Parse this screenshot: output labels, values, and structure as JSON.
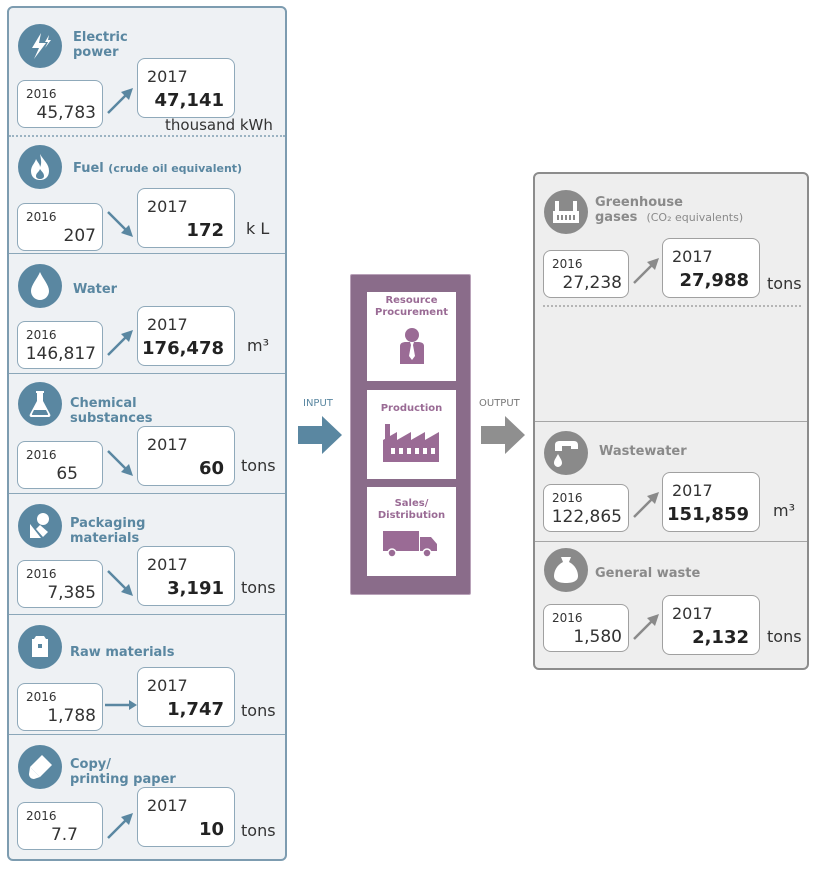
{
  "input": {
    "label": "INPUT",
    "items": [
      {
        "title": "Electric",
        "title2": "power",
        "y2016": "2016",
        "v2016": "45,783",
        "y2017": "2017",
        "v2017": "47,141",
        "unit": "thousand kWh",
        "icon": "lightning-icon"
      },
      {
        "title": "Fuel",
        "subtitle": "(crude oil equivalent)",
        "y2016": "2016",
        "v2016": "207",
        "y2017": "2017",
        "v2017": "172",
        "unit": "k L",
        "icon": "flame-icon"
      },
      {
        "title": "Water",
        "y2016": "2016",
        "v2016": "146,817",
        "y2017": "2017",
        "v2017": "176,478",
        "unit": "m³",
        "icon": "water-drop-icon"
      },
      {
        "title": "Chemical",
        "title2": "substances",
        "y2016": "2016",
        "v2016": "65",
        "y2017": "2017",
        "v2017": "60",
        "unit": "tons",
        "icon": "flask-icon"
      },
      {
        "title": "Packaging",
        "title2": "materials",
        "y2016": "2016",
        "v2016": "7,385",
        "y2017": "2017",
        "v2017": "3,191",
        "unit": "tons",
        "icon": "packaging-icon"
      },
      {
        "title": "Raw materials",
        "y2016": "2016",
        "v2016": "1,788",
        "y2017": "2017",
        "v2017": "1,747",
        "unit": "tons",
        "icon": "bag-icon"
      },
      {
        "title": "Copy/",
        "title2": "printing paper",
        "y2016": "2016",
        "v2016": "7.7",
        "y2017": "2017",
        "v2017": "10",
        "unit": "tons",
        "icon": "paper-icon"
      }
    ]
  },
  "process": {
    "stages": [
      "Resource",
      "Procurement",
      "Production",
      "Sales/",
      "Distribution"
    ]
  },
  "output": {
    "label": "OUTPUT",
    "items": [
      {
        "title": "Greenhouse",
        "title2": "gases",
        "subtitle": "(CO₂ equivalents)",
        "y2016": "2016",
        "v2016": "27,238",
        "y2017": "2017",
        "v2017": "27,988",
        "unit": "tons",
        "icon": "factory-icon"
      },
      {
        "title": "Wastewater",
        "y2016": "2016",
        "v2016": "122,865",
        "y2017": "2017",
        "v2017": "151,859",
        "unit": "m³",
        "icon": "faucet-icon"
      },
      {
        "title": "General waste",
        "y2016": "2016",
        "v2016": "1,580",
        "y2017": "2017",
        "v2017": "2,132",
        "unit": "tons",
        "icon": "trash-bag-icon"
      }
    ]
  },
  "colors": {
    "input_accent": "#5a87a1",
    "output_accent": "#8a8a8a",
    "process": "#8a6c8a"
  }
}
